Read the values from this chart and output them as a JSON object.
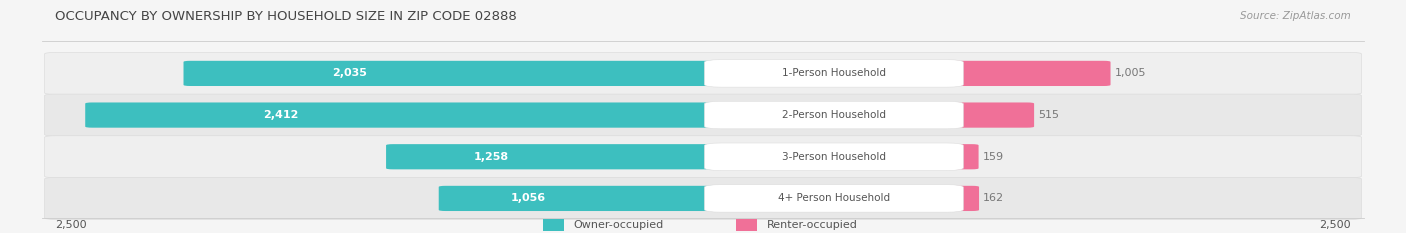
{
  "title": "OCCUPANCY BY OWNERSHIP BY HOUSEHOLD SIZE IN ZIP CODE 02888",
  "source": "Source: ZipAtlas.com",
  "categories": [
    "1-Person Household",
    "2-Person Household",
    "3-Person Household",
    "4+ Person Household"
  ],
  "owner_values": [
    2035,
    2412,
    1258,
    1056
  ],
  "renter_values": [
    1005,
    515,
    159,
    162
  ],
  "max_scale": 2500,
  "owner_color": "#3DBFBF",
  "renter_color": "#F07098",
  "row_bg_even": "#EFEFEF",
  "row_bg_odd": "#E8E8E8",
  "title_color": "#444444",
  "source_color": "#999999",
  "label_color": "#555555",
  "value_color_inside": "#FFFFFF",
  "value_color_outside": "#777777",
  "category_color": "#555555",
  "title_fontsize": 9.5,
  "source_fontsize": 7.5,
  "bar_fontsize": 8,
  "category_fontsize": 7.5,
  "axis_fontsize": 8,
  "legend_fontsize": 8,
  "fig_bg": "#F5F5F5"
}
